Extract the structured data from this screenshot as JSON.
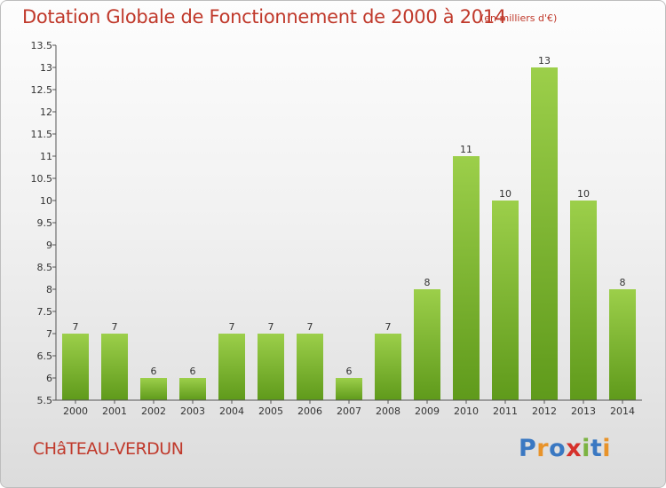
{
  "chart_data": {
    "type": "bar",
    "title": "Dotation Globale de Fonctionnement de 2000 à 2014",
    "subtitle": "(en milliers d'€)",
    "categories": [
      "2000",
      "2001",
      "2002",
      "2003",
      "2004",
      "2005",
      "2006",
      "2007",
      "2008",
      "2009",
      "2010",
      "2011",
      "2012",
      "2013",
      "2014"
    ],
    "values": [
      7,
      7,
      6,
      6,
      7,
      7,
      7,
      6,
      7,
      8,
      11,
      10,
      13,
      10,
      8
    ],
    "ylim": [
      5.5,
      13.5
    ],
    "yticks": [
      "5.5",
      "6",
      "6.5",
      "7",
      "7.5",
      "8",
      "8.5",
      "9",
      "9.5",
      "10",
      "10.5",
      "11",
      "11.5",
      "12",
      "12.5",
      "13",
      "13.5"
    ],
    "xlabel": "",
    "ylabel": "",
    "grid": false,
    "bar_color_top": "#9ccf4a",
    "bar_color_bottom": "#5f9a1b"
  },
  "footer": {
    "commune": "CHâTEAU-VERDUN",
    "logo_letters": [
      {
        "ch": "P",
        "color": "#3a78c2"
      },
      {
        "ch": "r",
        "color": "#e8932a"
      },
      {
        "ch": "o",
        "color": "#3a78c2"
      },
      {
        "ch": "x",
        "color": "#d6312b"
      },
      {
        "ch": "i",
        "color": "#7cb342"
      },
      {
        "ch": "t",
        "color": "#3a78c2"
      },
      {
        "ch": "i",
        "color": "#e8932a"
      }
    ]
  }
}
